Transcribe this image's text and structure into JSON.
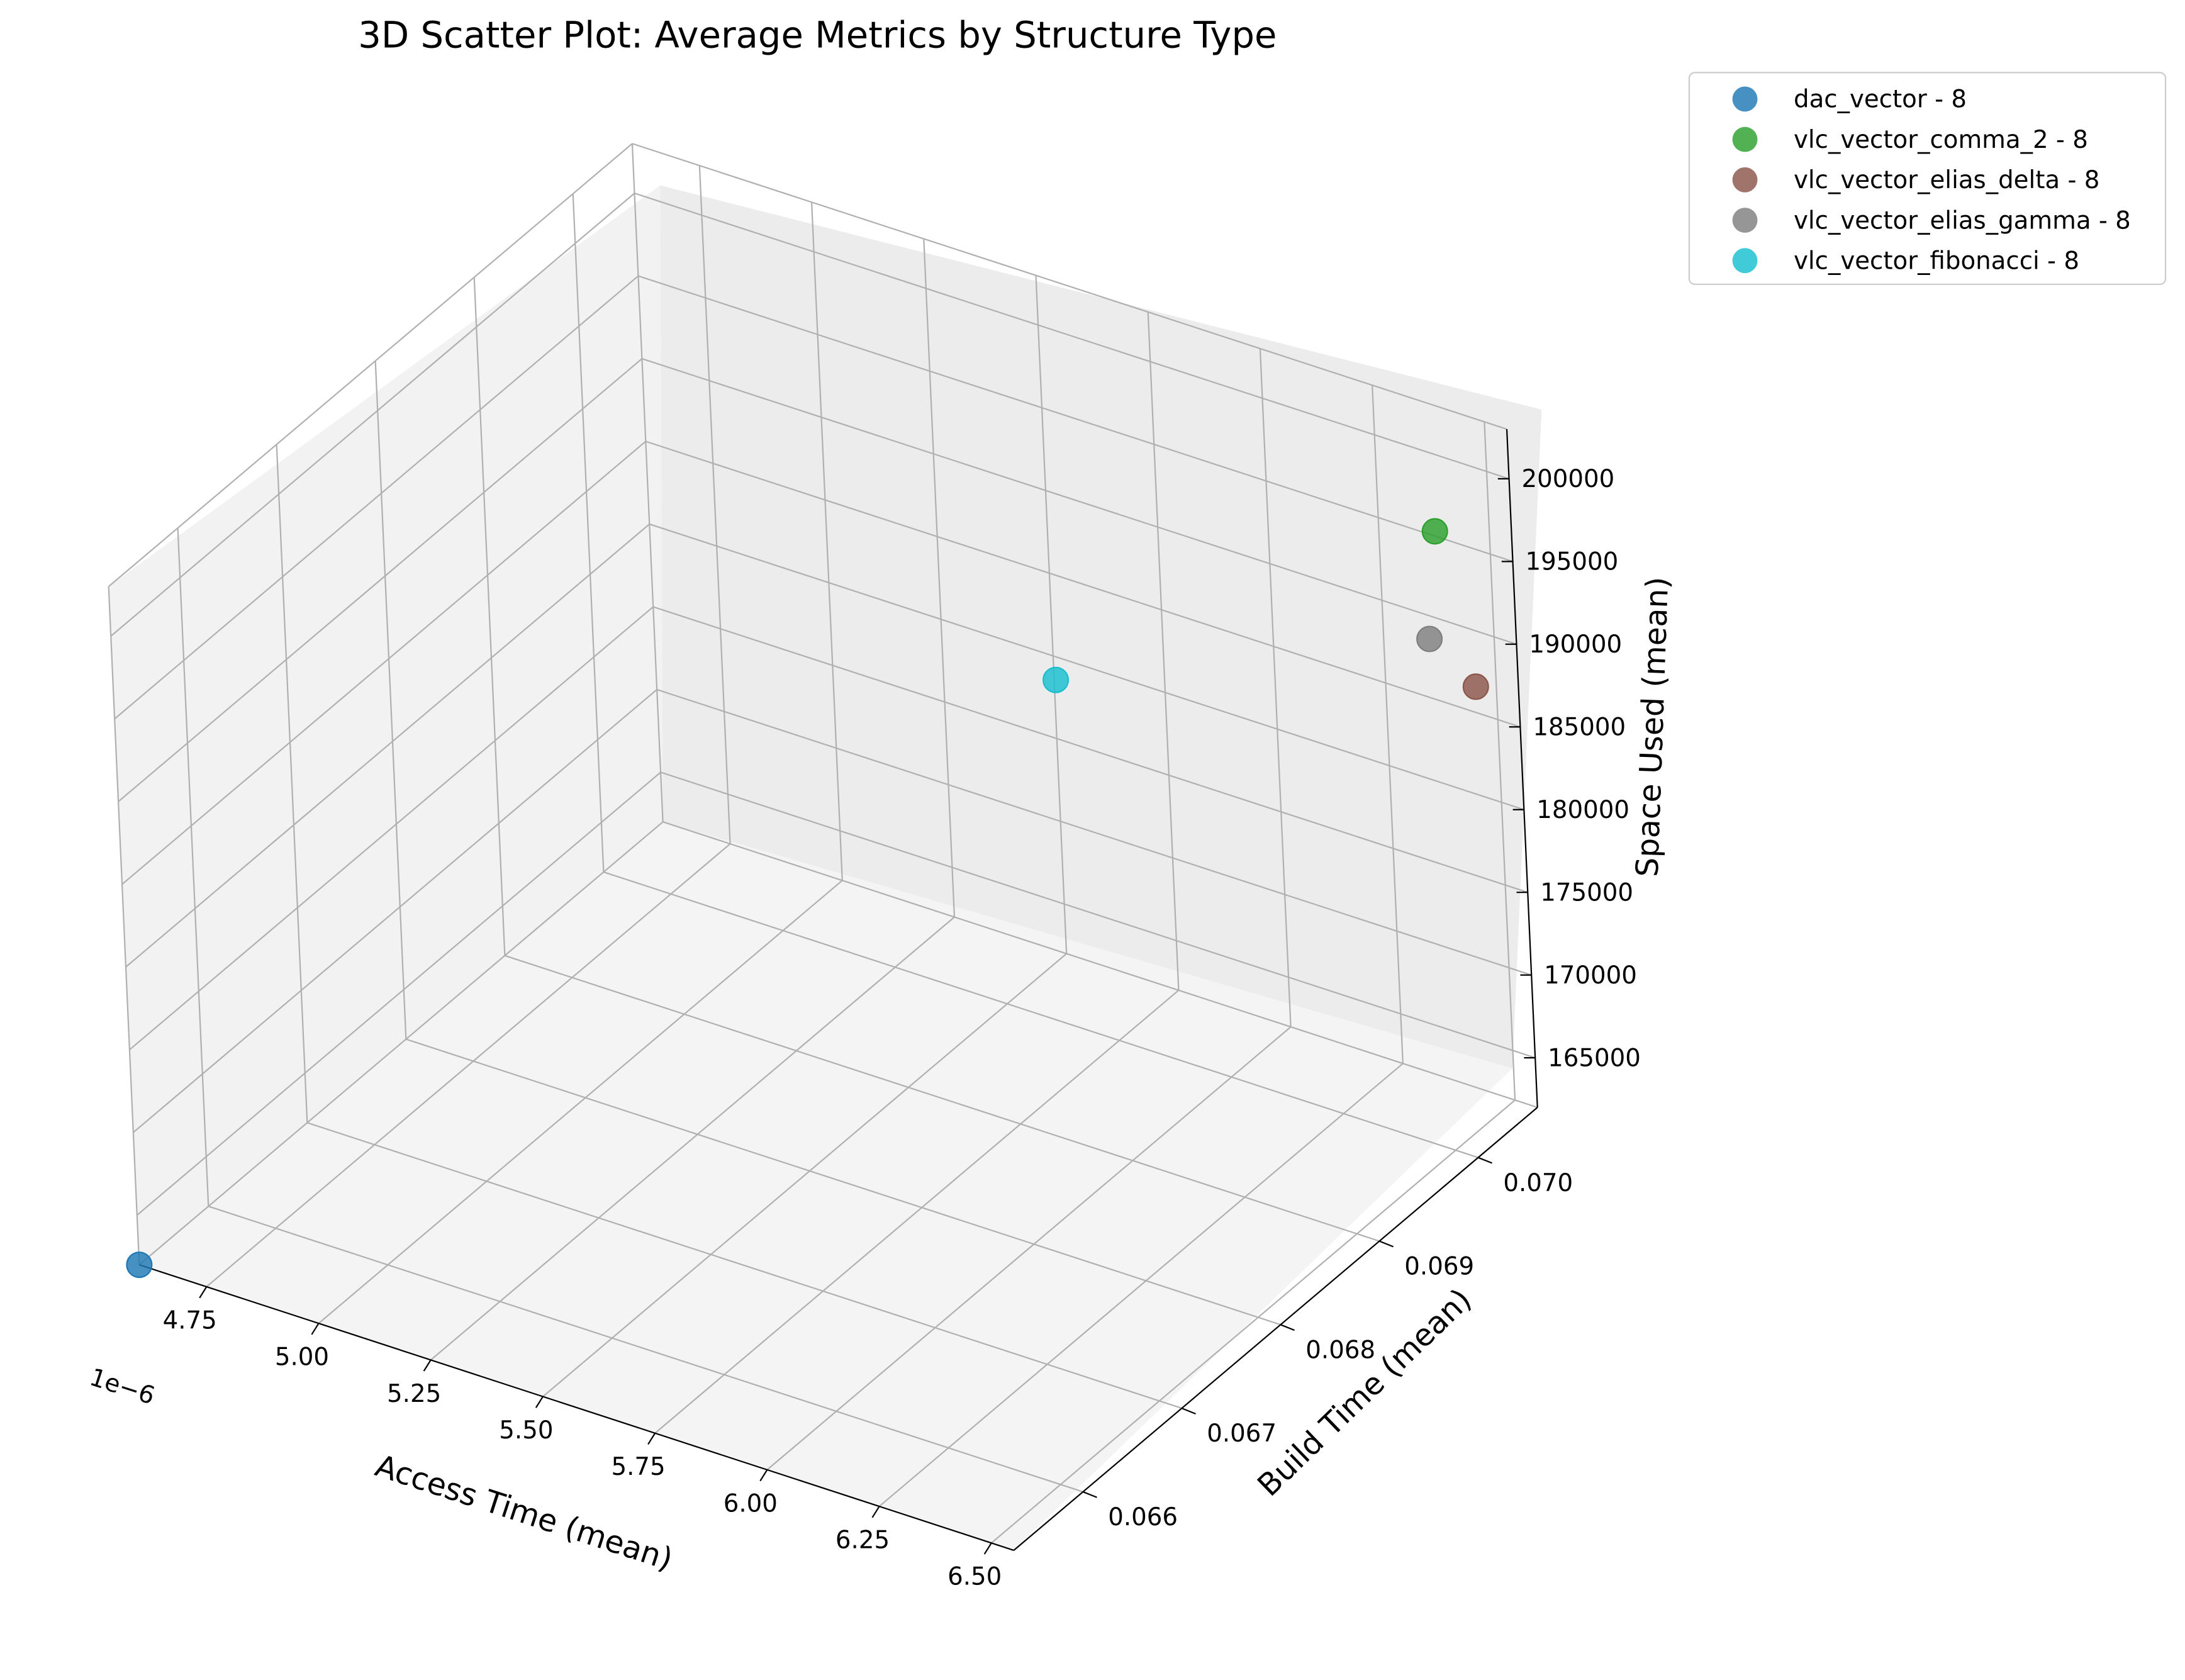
{
  "chart_data": {
    "type": "scatter",
    "projection": "3d",
    "title": "3D Scatter Plot: Average Metrics by Structure Type",
    "xlabel": "Access Time (mean)",
    "ylabel": "Build Time (mean)",
    "zlabel": "Space Used (mean)",
    "x_offset_label": "1e−6",
    "x_ticks": [
      "4.75",
      "5.00",
      "5.25",
      "5.50",
      "5.75",
      "6.00",
      "6.25",
      "6.50"
    ],
    "y_ticks": [
      "0.066",
      "0.067",
      "0.068",
      "0.069",
      "0.070"
    ],
    "z_ticks": [
      "165000",
      "170000",
      "175000",
      "180000",
      "185000",
      "190000",
      "195000",
      "200000"
    ],
    "xlim": [
      4.6e-06,
      6.55e-06
    ],
    "ylim": [
      0.0653,
      0.0706
    ],
    "zlim": [
      162000,
      203000
    ],
    "grid": true,
    "legend_position": "outside-top-right",
    "series": [
      {
        "name": "dac_vector - 8",
        "color": "#1f77b4",
        "x": 4.6e-06,
        "y": 0.0653,
        "z": 162000
      },
      {
        "name": "vlc_vector_comma_2 - 8",
        "color": "#2ca02c",
        "x": 6.4e-06,
        "y": 0.0705,
        "z": 196000
      },
      {
        "name": "vlc_vector_elias_delta - 8",
        "color": "#8c564b",
        "x": 6.5e-06,
        "y": 0.0704,
        "z": 188000
      },
      {
        "name": "vlc_vector_elias_gamma - 8",
        "color": "#7f7f7f",
        "x": 6.4e-06,
        "y": 0.0704,
        "z": 190000
      },
      {
        "name": "vlc_vector_fibonacci - 8",
        "color": "#17becf",
        "x": 5.55e-06,
        "y": 0.0704,
        "z": 180000
      }
    ]
  }
}
